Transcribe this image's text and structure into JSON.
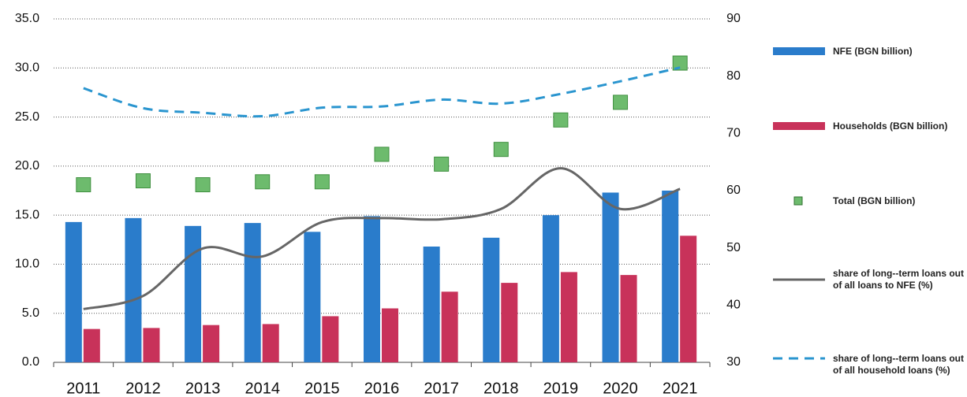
{
  "chart_data": {
    "type": "bar",
    "categories": [
      "2011",
      "2012",
      "2013",
      "2014",
      "2015",
      "2016",
      "2017",
      "2018",
      "2019",
      "2020",
      "2021"
    ],
    "series": [
      {
        "name": "NFE (BGN billion)",
        "color": "#2a7ccb",
        "kind": "bar",
        "values": [
          14.3,
          14.7,
          13.9,
          14.2,
          13.3,
          14.9,
          11.8,
          12.7,
          15.0,
          17.3,
          17.5
        ]
      },
      {
        "name": "Households (BGN billion)",
        "color": "#c8325a",
        "kind": "bar",
        "values": [
          3.4,
          3.5,
          3.8,
          3.9,
          4.7,
          5.5,
          7.2,
          8.1,
          9.2,
          8.9,
          12.9
        ]
      },
      {
        "name": "Total (BGN billion)",
        "color": "#6dbb6d",
        "kind": "marker",
        "values": [
          18.1,
          18.5,
          18.1,
          18.4,
          18.4,
          21.2,
          20.2,
          21.7,
          24.7,
          26.5,
          30.5
        ]
      },
      {
        "name": "share of long--term loans out of all loans to NFE (%)",
        "color": "#666666",
        "kind": "line",
        "axis": "y2",
        "values": [
          39.3,
          41.6,
          49.9,
          48.5,
          54.5,
          55.2,
          55.0,
          56.8,
          63.9,
          56.8,
          60.3
        ]
      },
      {
        "name": "share of long--term loans out of all household  loans (%)",
        "color": "#2a95cf",
        "kind": "dashed",
        "axis": "y2",
        "values": [
          77.9,
          74.4,
          73.6,
          73.0,
          74.5,
          74.7,
          75.9,
          75.2,
          76.9,
          79.1,
          81.5
        ]
      }
    ],
    "ylim": [
      0,
      35
    ],
    "yticks": [
      {
        "value": 0,
        "label": "0.0"
      },
      {
        "value": 5,
        "label": "5.0"
      },
      {
        "value": 10,
        "label": "10.0"
      },
      {
        "value": 15,
        "label": "15.0"
      },
      {
        "value": 20,
        "label": "20.0"
      },
      {
        "value": 25,
        "label": "25.0"
      },
      {
        "value": 30,
        "label": "30.0"
      },
      {
        "value": 35,
        "label": "35.0"
      }
    ],
    "y2lim": [
      30,
      90
    ],
    "y2ticks": [
      30,
      40,
      50,
      60,
      70,
      80,
      90
    ],
    "grid": true,
    "legend": "right"
  }
}
